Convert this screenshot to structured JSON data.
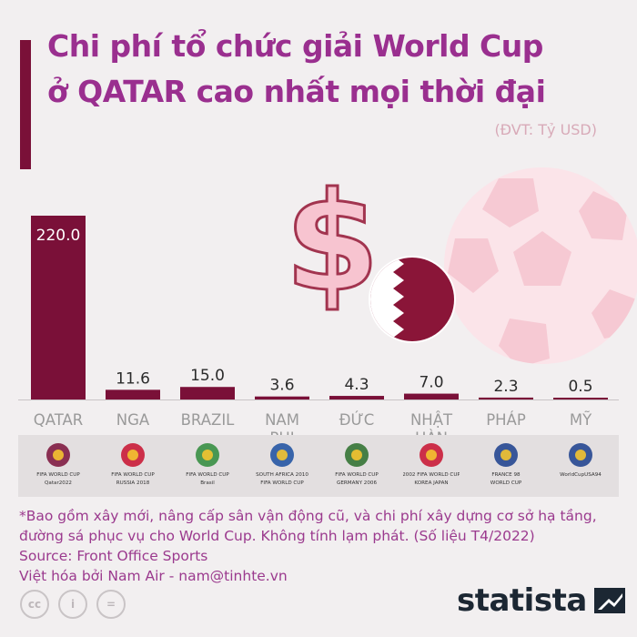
{
  "title_line1": "Chi phí tổ chức giải World Cup",
  "title_line2": "ở QATAR cao nhất mọi thời đại",
  "unit_label": "(ĐVT: Tỷ USD)",
  "colors": {
    "bar": "#7a1038",
    "title": "#9a2f8f",
    "axis_label": "#9a9a9a",
    "accent": "#7a1038",
    "decor_pink": "#f6c9d3"
  },
  "chart_data": {
    "type": "bar",
    "categories": [
      "QATAR",
      "NGA",
      "BRAZIL",
      "NAM PHI",
      "ĐỨC",
      "NHẬT HÀN",
      "PHÁP",
      "MỸ"
    ],
    "category_lines": [
      [
        "QATAR"
      ],
      [
        "NGA"
      ],
      [
        "BRAZIL"
      ],
      [
        "NAM",
        "PHI"
      ],
      [
        "ĐỨC"
      ],
      [
        "NHẬT",
        "HÀN"
      ],
      [
        "PHÁP"
      ],
      [
        "MỸ"
      ]
    ],
    "values": [
      220.0,
      11.6,
      15.0,
      3.6,
      4.3,
      7.0,
      2.3,
      0.5
    ],
    "value_labels": [
      "220.0",
      "11.6",
      "15.0",
      "3.6",
      "4.3",
      "7.0",
      "2.3",
      "0.5"
    ],
    "ylim": [
      0,
      220
    ],
    "grid": false,
    "legend": "none"
  },
  "logos": [
    {
      "icon": "qatar-2022-logo-icon",
      "lines": [
        "FIFA WORLD CUP",
        "Qatar2022"
      ]
    },
    {
      "icon": "russia-2018-logo-icon",
      "lines": [
        "FIFA WORLD CUP",
        "RUSSIA 2018"
      ]
    },
    {
      "icon": "brasil-2014-logo-icon",
      "lines": [
        "FIFA WORLD CUP",
        "Brasil"
      ]
    },
    {
      "icon": "south-africa-2010-logo-icon",
      "lines": [
        "SOUTH AFRICA 2010",
        "FIFA WORLD CUP"
      ]
    },
    {
      "icon": "germany-2006-logo-icon",
      "lines": [
        "FIFA WORLD CUP",
        "GERMANY 2006"
      ]
    },
    {
      "icon": "korea-japan-2002-logo-icon",
      "lines": [
        "2002 FIFA WORLD CUP",
        "KOREA JAPAN"
      ]
    },
    {
      "icon": "france-98-logo-icon",
      "lines": [
        "FRANCE 98",
        "WORLD CUP"
      ]
    },
    {
      "icon": "usa-94-logo-icon",
      "lines": [
        "WorldCupUSA94"
      ]
    }
  ],
  "footnote": {
    "line1": "*Bao gồm xây mới, nâng cấp sân vận động cũ, và chi phí xây dựng cơ sở hạ tầng,",
    "line2": "đường sá phục vụ cho World Cup. Không tính lạm phát. (Số liệu T4/2022)",
    "source": "Source: Front Office Sports",
    "credit": "Việt hóa bởi Nam Air - nam@tinhte.vn"
  },
  "license_icons": [
    "cc-icon",
    "person-icon",
    "equals-icon"
  ],
  "license_labels": [
    "cc",
    "i",
    "="
  ],
  "brand": "statista"
}
